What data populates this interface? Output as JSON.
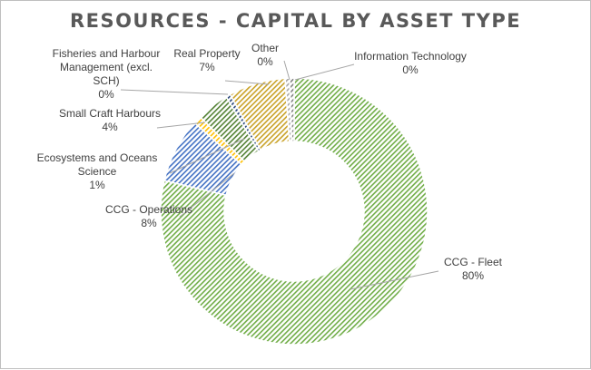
{
  "chart_data": {
    "type": "pie",
    "variant": "doughnut",
    "title": "RESOURCES - CAPITAL BY ASSET TYPE",
    "legend": "none",
    "slices": [
      {
        "name": "CCG - Fleet",
        "value": 80,
        "label": "80%",
        "color": "#70ad47"
      },
      {
        "name": "CCG - Operations",
        "value": 8,
        "label": "8%",
        "color": "#4472c4"
      },
      {
        "name": "Ecosystems and Oceans Science",
        "value": 1,
        "label": "1%",
        "color": "#ffc000"
      },
      {
        "name": "Small Craft Harbours",
        "value": 4,
        "label": "4%",
        "color": "#548235"
      },
      {
        "name": "Fisheries and Harbour Management (excl. SCH)",
        "value": 0,
        "label": "0%",
        "color": "#264478"
      },
      {
        "name": "Real Property",
        "value": 7,
        "label": "7%",
        "color": "#c9a227"
      },
      {
        "name": "Other",
        "value": 0,
        "label": "0%",
        "color": "#a5a5a5"
      },
      {
        "name": "Information Technology",
        "value": 0,
        "label": "0%",
        "color": "#7f7f7f"
      }
    ]
  }
}
